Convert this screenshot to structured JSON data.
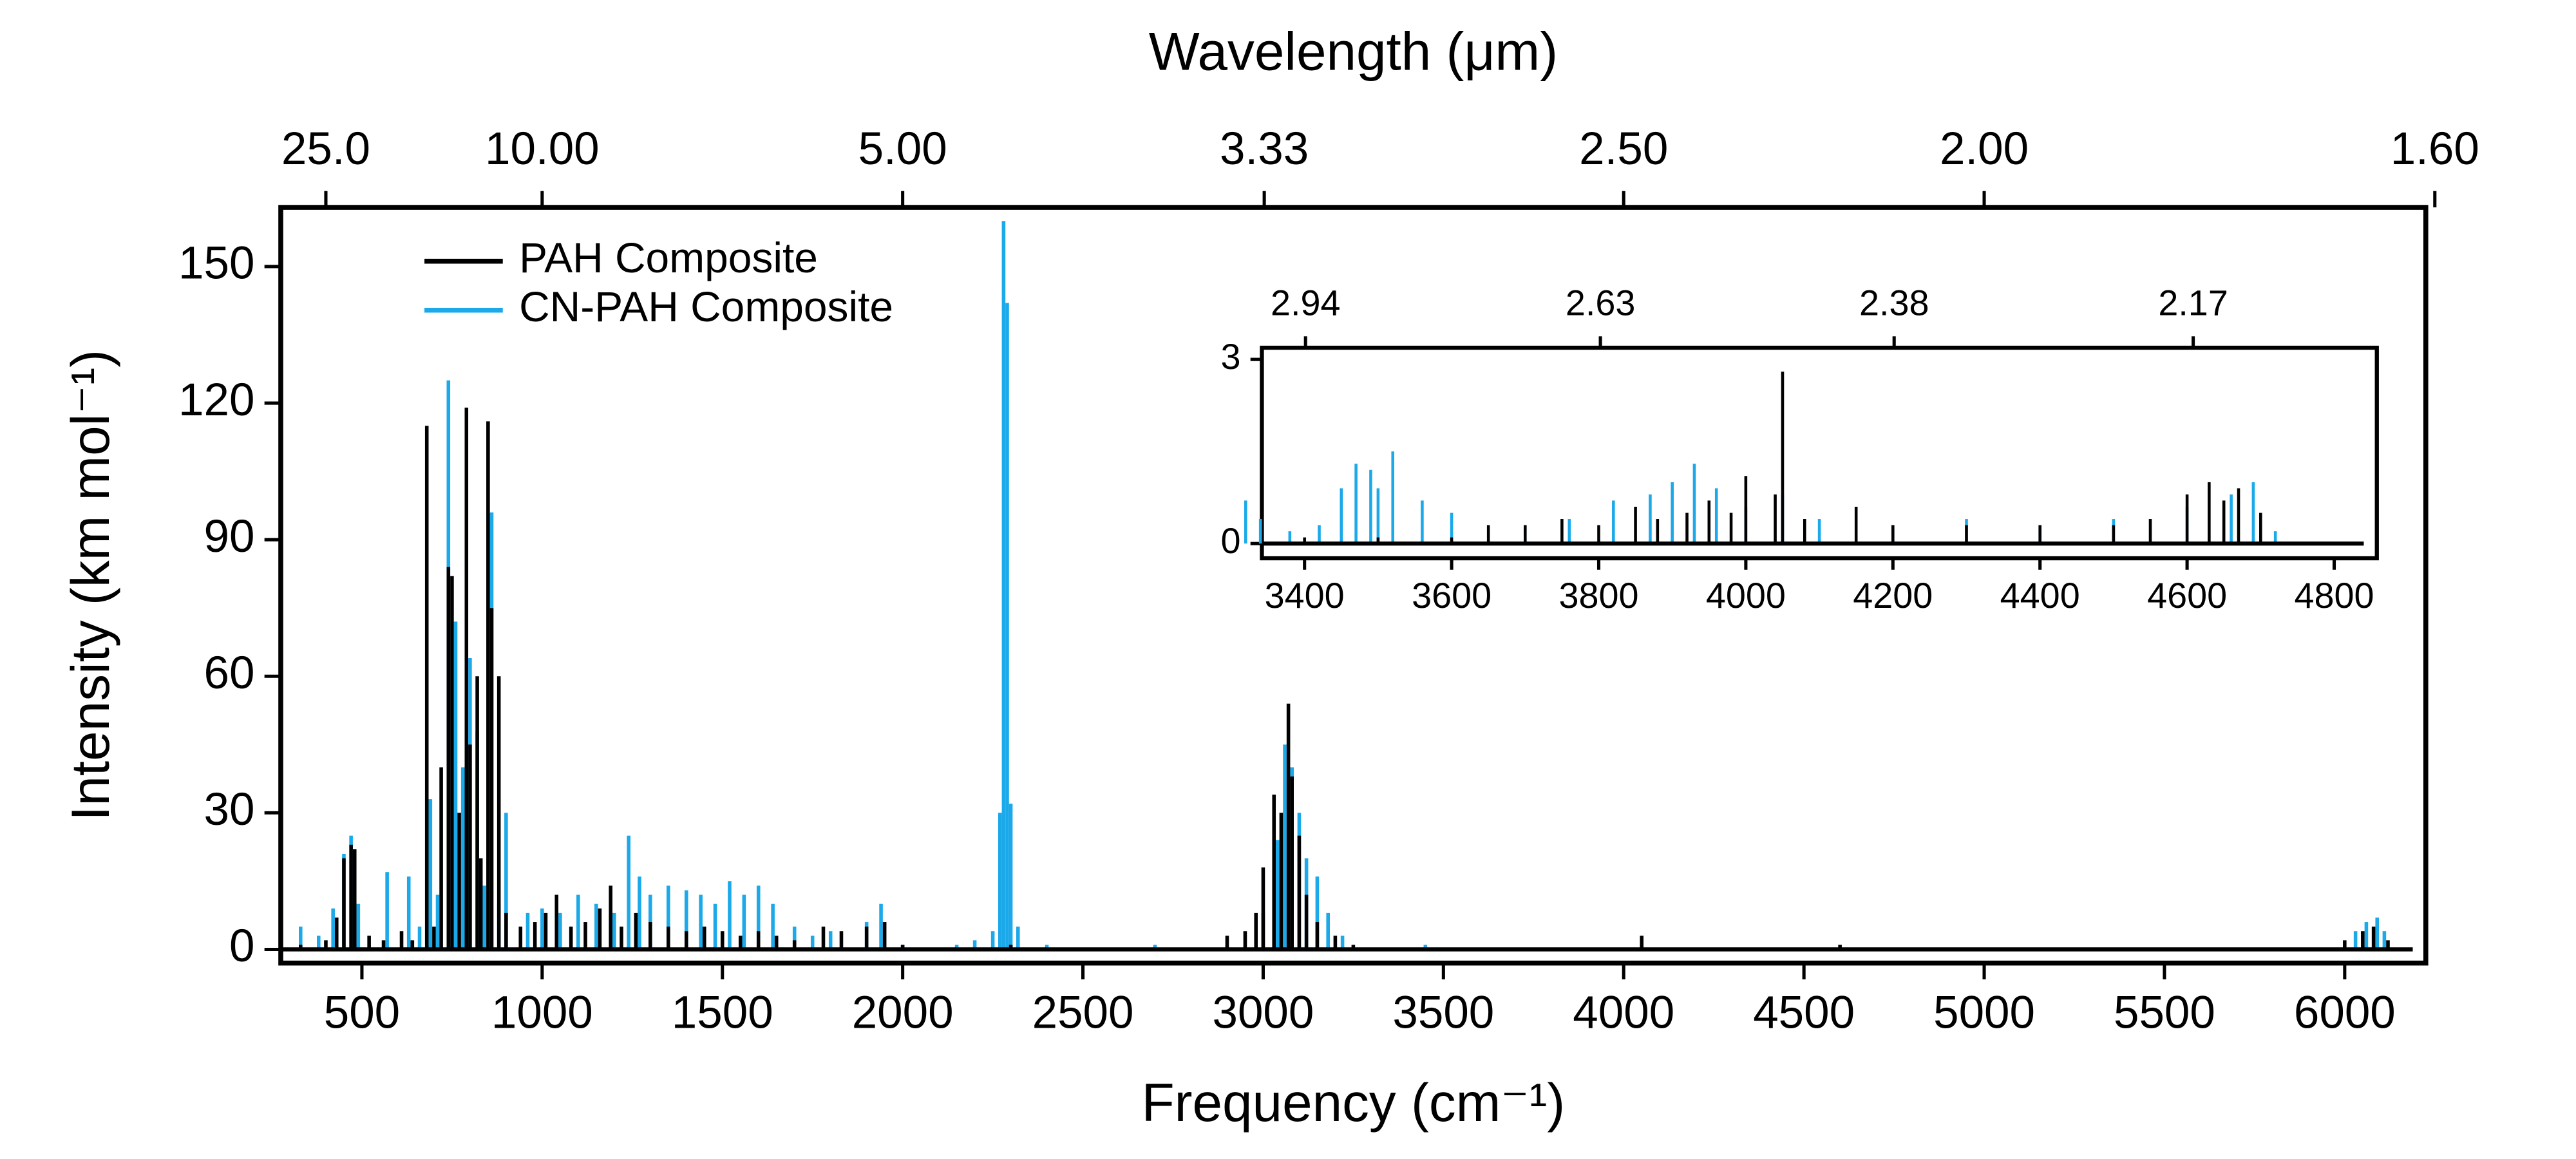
{
  "chart_data": [
    {
      "type": "stem",
      "x_label": "Frequency (cm⁻¹)",
      "y_label": "Intensity (km mol⁻¹)",
      "x2_label": "Wavelength (μm)",
      "xlim": [
        275,
        6225
      ],
      "ylim": [
        -3,
        163
      ],
      "xticks": [
        500,
        1000,
        1500,
        2000,
        2500,
        3000,
        3500,
        4000,
        4500,
        5000,
        5500,
        6000
      ],
      "yticks": [
        0,
        30,
        60,
        90,
        120,
        150
      ],
      "x2ticks": [
        {
          "value": 25,
          "label": "25.0"
        },
        {
          "value": 10,
          "label": "10.00"
        },
        {
          "value": 5,
          "label": "5.00"
        },
        3.33,
        {
          "value": 2.5,
          "label": "2.50"
        },
        {
          "value": 2,
          "label": "2.00"
        },
        {
          "value": 1.6,
          "label": "1.60"
        }
      ],
      "legend": "upper left",
      "series": [
        {
          "name": "PAH Composite",
          "color": "#000000",
          "x": [
            330,
            400,
            430,
            450,
            470,
            480,
            520,
            560,
            610,
            640,
            680,
            700,
            720,
            740,
            750,
            770,
            790,
            800,
            820,
            830,
            850,
            860,
            880,
            900,
            940,
            980,
            1010,
            1040,
            1080,
            1120,
            1160,
            1190,
            1220,
            1260,
            1300,
            1350,
            1400,
            1450,
            1500,
            1550,
            1600,
            1650,
            1700,
            1780,
            1830,
            1900,
            1950,
            2000,
            2300,
            2900,
            2950,
            2980,
            3000,
            3030,
            3050,
            3070,
            3080,
            3100,
            3120,
            3150,
            3200,
            3250,
            4050,
            4600,
            6000,
            6050,
            6080,
            6120
          ],
          "values": [
            1,
            2,
            7,
            20,
            23,
            22,
            3,
            2,
            4,
            2,
            115,
            5,
            40,
            84,
            82,
            30,
            119,
            45,
            60,
            20,
            116,
            75,
            60,
            8,
            5,
            6,
            8,
            12,
            5,
            6,
            9,
            14,
            5,
            8,
            6,
            5,
            4,
            5,
            4,
            3,
            4,
            3,
            2,
            5,
            4,
            5,
            6,
            1,
            1,
            3,
            4,
            8,
            18,
            34,
            30,
            54,
            38,
            25,
            12,
            6,
            3,
            1,
            3,
            1,
            2,
            4,
            5,
            2
          ]
        },
        {
          "name": "CN-PAH Composite",
          "color": "#1ba9ea",
          "x": [
            330,
            380,
            420,
            450,
            470,
            490,
            570,
            630,
            660,
            690,
            710,
            740,
            760,
            780,
            800,
            820,
            840,
            860,
            880,
            900,
            960,
            1000,
            1050,
            1100,
            1150,
            1200,
            1240,
            1270,
            1300,
            1350,
            1400,
            1440,
            1480,
            1520,
            1560,
            1600,
            1640,
            1700,
            1750,
            1800,
            1900,
            1940,
            2000,
            2150,
            2200,
            2250,
            2270,
            2280,
            2290,
            2300,
            2320,
            2400,
            2700,
            3000,
            3040,
            3060,
            3080,
            3100,
            3120,
            3150,
            3180,
            3220,
            3450,
            4050,
            6030,
            6060,
            6090,
            6110
          ],
          "values": [
            5,
            3,
            9,
            21,
            25,
            10,
            17,
            16,
            5,
            33,
            12,
            125,
            72,
            40,
            64,
            48,
            14,
            96,
            10,
            30,
            8,
            9,
            8,
            12,
            10,
            8,
            25,
            16,
            12,
            14,
            13,
            12,
            10,
            15,
            12,
            14,
            10,
            5,
            3,
            4,
            6,
            10,
            1,
            1,
            2,
            4,
            30,
            160,
            142,
            32,
            5,
            1,
            1,
            8,
            24,
            45,
            40,
            30,
            20,
            16,
            8,
            3,
            1,
            1,
            4,
            6,
            7,
            4
          ]
        }
      ]
    },
    {
      "type": "stem",
      "xlim": [
        3342,
        4858
      ],
      "ylim": [
        -0.24,
        3.19
      ],
      "xticks": [
        3400,
        3600,
        3800,
        4000,
        4200,
        4400,
        4600,
        4800
      ],
      "yticks": [
        0,
        3
      ],
      "x2ticks": [
        2.94,
        2.63,
        2.38,
        2.17
      ],
      "series": [
        {
          "color": "#000000",
          "x": [
            3400,
            3500,
            3600,
            3650,
            3700,
            3750,
            3800,
            3850,
            3880,
            3920,
            3950,
            3980,
            4000,
            4040,
            4050,
            4080,
            4150,
            4200,
            4300,
            4400,
            4500,
            4550,
            4600,
            4630,
            4650,
            4670,
            4700
          ],
          "values": [
            0.1,
            0.1,
            0.1,
            0.3,
            0.3,
            0.4,
            0.3,
            0.6,
            0.4,
            0.5,
            0.7,
            0.5,
            1.1,
            0.8,
            2.8,
            0.4,
            0.6,
            0.3,
            0.3,
            0.3,
            0.3,
            0.4,
            0.8,
            1.0,
            0.7,
            0.9,
            0.5
          ]
        },
        {
          "color": "#1ba9ea",
          "x": [
            3320,
            3340,
            3380,
            3420,
            3450,
            3470,
            3490,
            3500,
            3520,
            3560,
            3600,
            3700,
            3760,
            3820,
            3870,
            3900,
            3930,
            3960,
            4000,
            4050,
            4100,
            4200,
            4300,
            4400,
            4500,
            4600,
            4660,
            4690,
            4720
          ],
          "values": [
            0.7,
            0.4,
            0.2,
            0.3,
            0.9,
            1.3,
            1.2,
            0.9,
            1.5,
            0.7,
            0.5,
            0.3,
            0.4,
            0.7,
            0.8,
            1.0,
            1.3,
            0.9,
            0.6,
            0.8,
            0.4,
            0.3,
            0.4,
            0.3,
            0.4,
            0.6,
            0.8,
            1.0,
            0.2
          ]
        }
      ]
    }
  ]
}
